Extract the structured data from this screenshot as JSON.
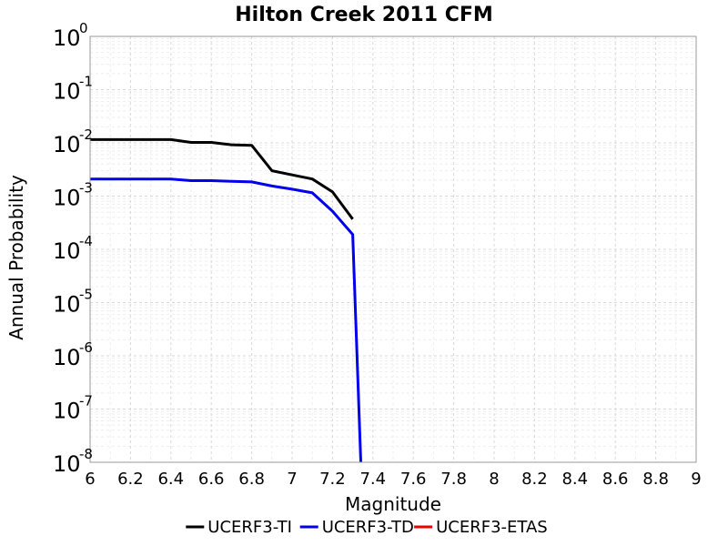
{
  "chart_data": {
    "type": "line",
    "title": "Hilton Creek 2011 CFM",
    "xlabel": "Magnitude",
    "ylabel": "Annual Probability",
    "xlim": [
      6,
      9
    ],
    "ylim": [
      1e-08,
      1
    ],
    "y_scale": "log",
    "grid": true,
    "legend_position": "bottom",
    "x_ticks": [
      "6",
      "6.2",
      "6.4",
      "6.6",
      "6.8",
      "7",
      "7.2",
      "7.4",
      "7.6",
      "7.8",
      "8",
      "8.2",
      "8.4",
      "8.6",
      "8.8",
      "9"
    ],
    "y_ticks": [
      {
        "base": "10",
        "exp": "0"
      },
      {
        "base": "10",
        "exp": "-1"
      },
      {
        "base": "10",
        "exp": "-2"
      },
      {
        "base": "10",
        "exp": "-3"
      },
      {
        "base": "10",
        "exp": "-4"
      },
      {
        "base": "10",
        "exp": "-5"
      },
      {
        "base": "10",
        "exp": "-6"
      },
      {
        "base": "10",
        "exp": "-7"
      },
      {
        "base": "10",
        "exp": "-8"
      }
    ],
    "series": [
      {
        "name": "UCERF3-TI",
        "color": "#000000",
        "points": [
          [
            6.0,
            0.0115
          ],
          [
            6.1,
            0.0115
          ],
          [
            6.2,
            0.0115
          ],
          [
            6.3,
            0.0115
          ],
          [
            6.4,
            0.0115
          ],
          [
            6.5,
            0.0102
          ],
          [
            6.6,
            0.0102
          ],
          [
            6.7,
            0.0092
          ],
          [
            6.8,
            0.009
          ],
          [
            6.9,
            0.003
          ],
          [
            7.0,
            0.0025
          ],
          [
            7.1,
            0.0021
          ],
          [
            7.2,
            0.0012
          ],
          [
            7.3,
            0.00037
          ]
        ]
      },
      {
        "name": "UCERF3-TD",
        "color": "#0000ee",
        "points": [
          [
            6.0,
            0.0021
          ],
          [
            6.1,
            0.0021
          ],
          [
            6.2,
            0.0021
          ],
          [
            6.3,
            0.0021
          ],
          [
            6.4,
            0.0021
          ],
          [
            6.5,
            0.00195
          ],
          [
            6.6,
            0.00195
          ],
          [
            6.7,
            0.0019
          ],
          [
            6.8,
            0.00185
          ],
          [
            6.9,
            0.00155
          ],
          [
            7.0,
            0.00135
          ],
          [
            7.1,
            0.00115
          ],
          [
            7.2,
            0.00052
          ],
          [
            7.3,
            0.00019
          ],
          [
            7.34,
            1e-08
          ]
        ]
      },
      {
        "name": "UCERF3-ETAS",
        "color": "#ee0000",
        "points": []
      }
    ]
  }
}
